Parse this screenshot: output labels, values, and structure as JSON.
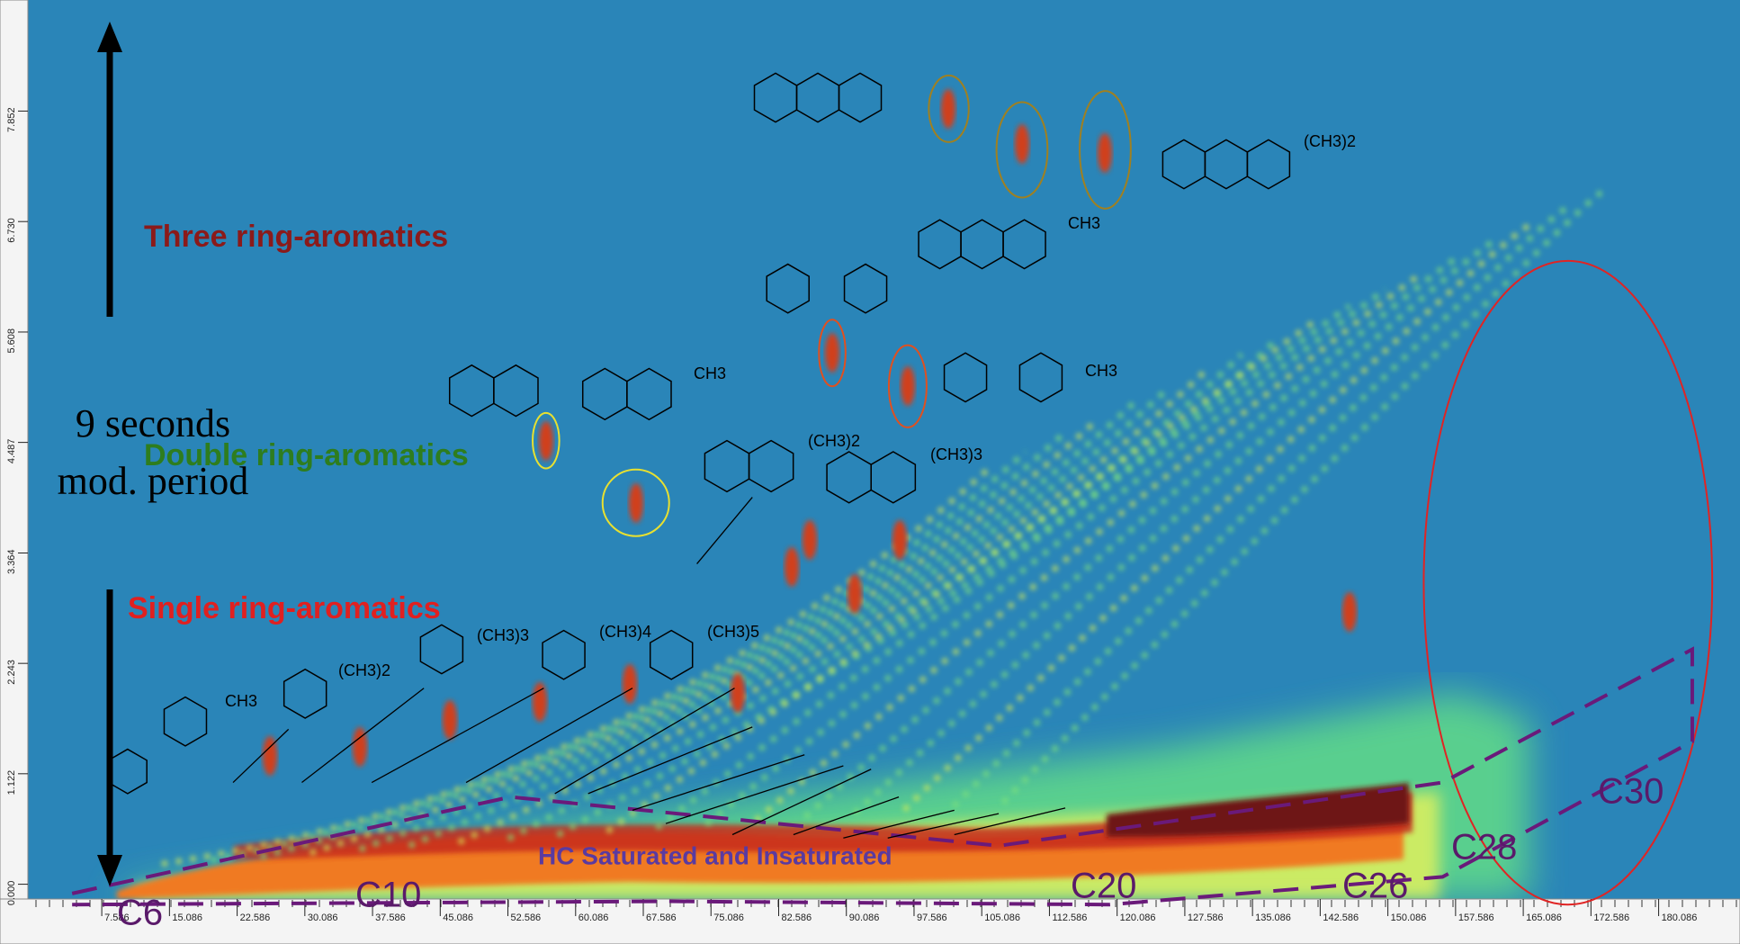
{
  "chart_data": {
    "type": "heatmap",
    "xlim": [
      -0.6,
      189.1
    ],
    "ylim": [
      -0.15,
      8.98
    ],
    "xticks": [
      7.586,
      15.086,
      22.586,
      30.086,
      37.586,
      45.086,
      52.586,
      60.086,
      67.586,
      75.086,
      82.586,
      90.086,
      97.586,
      105.086,
      112.586,
      120.086,
      127.586,
      135.086,
      142.586,
      150.086,
      157.586,
      165.086,
      172.586,
      180.086
    ],
    "yticks": [
      {
        "value": 0,
        "label": "0.000"
      },
      1.122,
      2.243,
      3.364,
      4.487,
      5.608,
      {
        "value": 6.73,
        "label": "6.730"
      },
      7.852
    ],
    "annotations": [
      "Three ring-aromatics",
      "Double ring-aromatics",
      "Single ring-aromatics",
      "9 seconds",
      "mod. period",
      "HC Saturated and Insaturated"
    ],
    "carbon_labels": [
      "C6",
      "C10",
      "C20",
      "C26",
      "C28",
      "C30"
    ],
    "substituent_labels": [
      "CH3",
      "(CH3)2",
      "(CH3)3",
      "(CH3)4",
      "(CH3)5",
      "CH3",
      "(CH3)2",
      "(CH3)3",
      "CH3",
      "CH3",
      "(CH3)2"
    ]
  }
}
